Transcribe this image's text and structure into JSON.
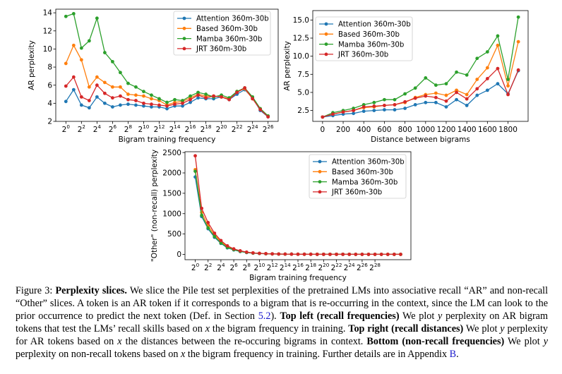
{
  "caption": {
    "figure_label": "Figure 3:",
    "title": "Perplexity slices.",
    "intro": "We slice the Pile test set perplexities of the pretrained LMs into associative recall “AR” and non-recall “Other” slices. A token is an AR token if it corresponds to a bigram that is re-occurring in the context, since the LM can look to the prior occurrence to predict the next token (Def. in Section ",
    "section_ref": "5.2",
    "intro_end": ").",
    "tl_head": "Top left (recall frequencies)",
    "tl_a": " We plot ",
    "tl_y": "y",
    "tl_b": " perplexity on AR bigram tokens that test the LMs’ recall skills based on ",
    "tl_x": "x",
    "tl_c": " the bigram frequency in training.",
    "tr_head": "Top right (recall distances)",
    "tr_a": " We plot ",
    "tr_y": "y",
    "tr_b": " perplexity for AR tokens based on ",
    "tr_x": "x",
    "tr_c": " the distances between the re-occuring bigrams in context.",
    "bot_head": "Bottom (non-recall frequencies)",
    "bot_a": " We plot ",
    "bot_y": "y",
    "bot_b": " perplexity on non-recall tokens based on ",
    "bot_x": "x",
    "bot_c": " the bigram frequency in training. Further details are in Appendix ",
    "appendix_ref": "B",
    "end": "."
  },
  "colors": {
    "attention": "#1f77b4",
    "based": "#ff7f0e",
    "mamba": "#2ca02c",
    "jrt": "#d62728"
  },
  "chart_data": [
    {
      "id": "top-left",
      "type": "line",
      "xlabel": "Bigram training frequency",
      "ylabel": "AR perplexity",
      "x_scale": "log2",
      "x": [
        0,
        1,
        2,
        3,
        4,
        5,
        6,
        7,
        8,
        9,
        10,
        11,
        12,
        13,
        14,
        15,
        16,
        17,
        18,
        19,
        20,
        21,
        22,
        23,
        24,
        25,
        26
      ],
      "x_ticks": [
        0,
        2,
        4,
        6,
        8,
        10,
        12,
        14,
        16,
        18,
        20,
        22,
        24,
        26
      ],
      "x_tick_labels": [
        "2",
        "2",
        "2",
        "2",
        "2",
        "2",
        "2",
        "2",
        "2",
        "2",
        "2",
        "2",
        "2",
        "2"
      ],
      "x_tick_exponents": [
        "0",
        "2",
        "4",
        "6",
        "8",
        "10",
        "12",
        "14",
        "16",
        "18",
        "20",
        "22",
        "24",
        "26"
      ],
      "xlim": [
        -1.3,
        27.3
      ],
      "ylim": [
        2,
        14.4
      ],
      "y_ticks": [
        2,
        4,
        6,
        8,
        10,
        12,
        14
      ],
      "y_tick_labels": [
        "2",
        "4",
        "6",
        "8",
        "10",
        "12",
        "14"
      ],
      "legend": "top-right",
      "grid": false,
      "series": [
        {
          "name": "Attention 360m-30b",
          "color_key": "attention",
          "values": [
            4.2,
            5.5,
            3.8,
            3.5,
            4.7,
            4.0,
            3.6,
            3.8,
            3.9,
            3.8,
            3.7,
            3.6,
            3.6,
            3.4,
            3.7,
            3.7,
            4.1,
            4.6,
            4.5,
            4.5,
            4.7,
            4.4,
            5.0,
            5.5,
            4.6,
            3.2,
            2.5
          ]
        },
        {
          "name": "Based 360m-30b",
          "color_key": "based",
          "values": [
            8.4,
            10.4,
            8.8,
            5.8,
            6.9,
            6.3,
            5.8,
            5.8,
            5.0,
            4.9,
            4.8,
            4.5,
            4.3,
            3.8,
            4.1,
            4.2,
            4.6,
            5.0,
            4.8,
            4.8,
            4.7,
            4.5,
            5.3,
            5.6,
            4.5,
            3.4,
            2.6
          ]
        },
        {
          "name": "Mamba 360m-30b",
          "color_key": "mamba",
          "values": [
            13.6,
            13.9,
            10.1,
            10.9,
            13.4,
            9.6,
            8.6,
            7.4,
            6.2,
            5.8,
            5.3,
            4.9,
            4.5,
            4.1,
            4.4,
            4.3,
            4.8,
            5.2,
            5.0,
            4.7,
            4.9,
            4.6,
            5.3,
            5.7,
            4.7,
            3.4,
            2.6
          ]
        },
        {
          "name": "JRT 360m-30b",
          "color_key": "jrt",
          "values": [
            5.9,
            6.9,
            4.7,
            4.3,
            6.0,
            5.1,
            4.6,
            4.8,
            4.4,
            4.3,
            4.0,
            3.9,
            3.8,
            3.7,
            3.9,
            4.0,
            4.4,
            4.9,
            4.6,
            4.8,
            4.7,
            4.4,
            5.2,
            5.7,
            4.5,
            3.3,
            2.5
          ]
        }
      ]
    },
    {
      "id": "top-right",
      "type": "line",
      "xlabel": "Distance between bigrams",
      "ylabel": "AR perplexity",
      "x": [
        0,
        100,
        200,
        300,
        400,
        500,
        600,
        700,
        800,
        900,
        1000,
        1100,
        1200,
        1300,
        1400,
        1500,
        1600,
        1700,
        1800,
        1900
      ],
      "x_ticks": [
        0,
        200,
        400,
        600,
        800,
        1000,
        1200,
        1400,
        1600,
        1800
      ],
      "x_tick_labels": [
        "0",
        "200",
        "400",
        "600",
        "800",
        "1000",
        "1200",
        "1400",
        "1600",
        "1800"
      ],
      "xlim": [
        -95,
        1995
      ],
      "ylim": [
        1.0,
        16.3
      ],
      "y_ticks": [
        2.5,
        5.0,
        7.5,
        10.0,
        12.5,
        15.0
      ],
      "y_tick_labels": [
        "2.5",
        "5.0",
        "7.5",
        "10.0",
        "12.5",
        "15.0"
      ],
      "legend": "top-left",
      "grid": false,
      "series": [
        {
          "name": "Attention 360m-30b",
          "color_key": "attention",
          "values": [
            1.6,
            1.8,
            2.0,
            2.1,
            2.4,
            2.5,
            2.6,
            2.6,
            2.8,
            3.3,
            3.6,
            3.6,
            3.0,
            4.0,
            3.2,
            4.6,
            5.3,
            6.2,
            4.8,
            8.0
          ]
        },
        {
          "name": "Based 360m-30b",
          "color_key": "based",
          "values": [
            1.6,
            2.0,
            2.3,
            2.5,
            2.9,
            3.0,
            3.2,
            3.3,
            3.6,
            4.3,
            4.7,
            4.9,
            4.6,
            5.3,
            4.7,
            6.8,
            8.4,
            11.5,
            5.9,
            12.0
          ]
        },
        {
          "name": "Mamba 360m-30b",
          "color_key": "mamba",
          "values": [
            1.6,
            2.2,
            2.5,
            2.8,
            3.3,
            3.6,
            4.0,
            4.0,
            4.8,
            5.6,
            7.0,
            6.0,
            6.2,
            7.8,
            7.4,
            9.7,
            10.6,
            12.8,
            6.8,
            15.4
          ]
        },
        {
          "name": "JRT 360m-30b",
          "color_key": "jrt",
          "values": [
            1.6,
            2.0,
            2.3,
            2.5,
            3.0,
            3.1,
            3.2,
            3.3,
            3.7,
            4.2,
            4.5,
            4.3,
            3.8,
            5.0,
            4.1,
            5.5,
            6.9,
            8.3,
            4.7,
            8.1
          ]
        }
      ]
    },
    {
      "id": "bottom",
      "type": "line",
      "xlabel": "Bigram training frequency",
      "ylabel": "\"Other\" (non-recall) perplexity",
      "x_scale": "log2",
      "x": [
        0,
        1,
        2,
        3,
        4,
        5,
        6,
        7,
        8,
        9,
        10,
        11,
        12,
        13,
        14,
        15,
        16,
        17,
        18,
        19,
        20,
        21,
        22,
        23,
        24,
        25,
        26,
        27,
        28,
        29,
        30,
        31,
        32
      ],
      "x_ticks": [
        0,
        2,
        4,
        6,
        8,
        10,
        12,
        14,
        16,
        18,
        20,
        22,
        24,
        26,
        28
      ],
      "x_tick_labels": [
        "2",
        "2",
        "2",
        "2",
        "2",
        "2",
        "2",
        "2",
        "2",
        "2",
        "2",
        "2",
        "2",
        "2",
        "2"
      ],
      "x_tick_exponents": [
        "0",
        "2",
        "4",
        "6",
        "8",
        "10",
        "12",
        "14",
        "16",
        "18",
        "20",
        "22",
        "24",
        "26",
        "28"
      ],
      "xlim": [
        -1.6,
        33.6
      ],
      "ylim": [
        -130,
        2520
      ],
      "y_ticks": [
        0,
        500,
        1000,
        1500,
        2000,
        2500
      ],
      "y_tick_labels": [
        "0",
        "500",
        "1000",
        "1500",
        "2000",
        "2500"
      ],
      "legend": "top-right",
      "grid": false,
      "series": [
        {
          "name": "Attention 360m-30b",
          "color_key": "attention",
          "values": [
            1900,
            930,
            630,
            420,
            270,
            160,
            110,
            70,
            45,
            30,
            22,
            15,
            11,
            8,
            6,
            5,
            4,
            3,
            3,
            2,
            2,
            2,
            2,
            2,
            2,
            1,
            1,
            1,
            1,
            1,
            1,
            1,
            1
          ]
        },
        {
          "name": "Based 360m-30b",
          "color_key": "based",
          "values": [
            2080,
            1030,
            700,
            480,
            310,
            190,
            125,
            80,
            52,
            34,
            24,
            17,
            12,
            9,
            7,
            5,
            4,
            3,
            3,
            2,
            2,
            2,
            2,
            2,
            2,
            1,
            1,
            1,
            1,
            1,
            1,
            1,
            1
          ]
        },
        {
          "name": "Mamba 360m-30b",
          "color_key": "mamba",
          "values": [
            2040,
            960,
            650,
            440,
            280,
            170,
            115,
            75,
            48,
            32,
            23,
            16,
            12,
            8,
            6,
            5,
            4,
            3,
            3,
            2,
            2,
            2,
            2,
            2,
            2,
            1,
            1,
            1,
            1,
            1,
            1,
            1,
            1
          ]
        },
        {
          "name": "JRT 360m-30b",
          "color_key": "jrt",
          "values": [
            2420,
            1130,
            780,
            520,
            340,
            210,
            135,
            88,
            56,
            37,
            26,
            18,
            13,
            9,
            7,
            5,
            4,
            3,
            3,
            2,
            2,
            2,
            2,
            2,
            2,
            1,
            1,
            1,
            1,
            1,
            1,
            1,
            1
          ]
        }
      ]
    }
  ]
}
